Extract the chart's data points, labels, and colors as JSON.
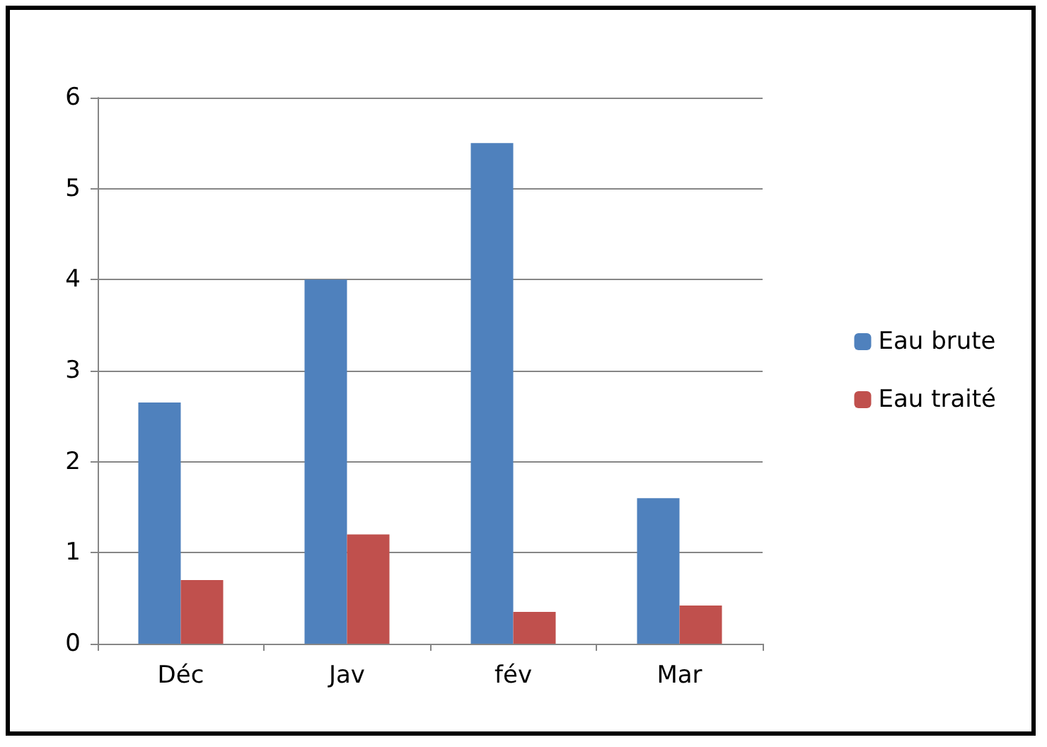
{
  "chart_data": {
    "type": "bar",
    "categories": [
      "Déc",
      "Jav",
      "fév",
      "Mar"
    ],
    "series": [
      {
        "name": "Eau brute",
        "color": "#4f81bd",
        "values": [
          2.65,
          4.0,
          5.5,
          1.6
        ]
      },
      {
        "name": "Eau traité",
        "color": "#c0504d",
        "values": [
          0.7,
          1.2,
          0.35,
          0.42
        ]
      }
    ],
    "ylim": [
      0,
      6
    ],
    "yticks": [
      0,
      1,
      2,
      3,
      4,
      5,
      6
    ],
    "grid": "y",
    "legend": "right"
  }
}
